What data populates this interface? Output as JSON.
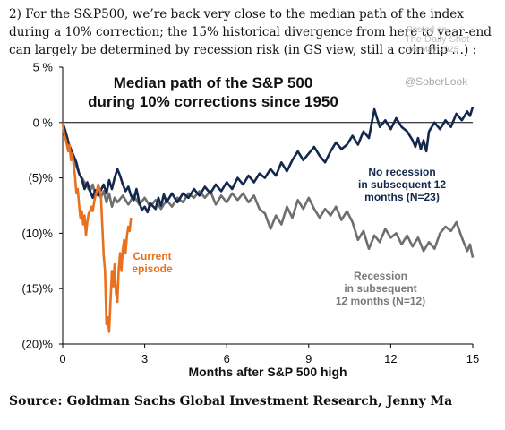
{
  "intro_text": "2) For the S&P500, we’re back very close to the median path of the index during a 10% correction; the 15% historical divergence from here to year-end can largely be determined by recession risk (in GS view, still a coin flip …) :",
  "watermark": {
    "line1": "Posted on",
    "line2": "The Daily Shot",
    "date": "06-May-2025"
  },
  "handle": "@SoberLook",
  "source": "Source: Goldman Sachs Global Investment Research, Jenny Ma",
  "chart_data": {
    "type": "line",
    "title": [
      "Median path of the S&P 500",
      "during 10% corrections since 1950"
    ],
    "xlabel": "Months after S&P 500 high",
    "ylabel": "",
    "xlim": [
      0,
      15
    ],
    "ylim": [
      -20,
      5
    ],
    "x_ticks": [
      0,
      3,
      6,
      9,
      12,
      15
    ],
    "x_tick_labels": [
      "0",
      "3",
      "6",
      "9",
      "12",
      "15"
    ],
    "y_ticks": [
      5,
      0,
      -5,
      -10,
      -15,
      -20
    ],
    "y_tick_labels": [
      "5 %",
      "0 %",
      "(5)%",
      "(10)%",
      "(15)%",
      "(20)%"
    ],
    "grid": false,
    "series": [
      {
        "name": "No recession in subsequent 12 months (N=23)",
        "color": "#13284c",
        "label_lines": [
          "No recession",
          "in subsequent 12",
          "months (N=23)"
        ],
        "points": [
          [
            0,
            0
          ],
          [
            0.1,
            -0.8
          ],
          [
            0.2,
            -1.8
          ],
          [
            0.3,
            -2.4
          ],
          [
            0.4,
            -3.0
          ],
          [
            0.5,
            -3.6
          ],
          [
            0.6,
            -4.6
          ],
          [
            0.7,
            -5.1
          ],
          [
            0.8,
            -6.0
          ],
          [
            0.9,
            -5.4
          ],
          [
            1.0,
            -6.2
          ],
          [
            1.1,
            -6.8
          ],
          [
            1.2,
            -6.1
          ],
          [
            1.3,
            -6.6
          ],
          [
            1.5,
            -5.6
          ],
          [
            1.6,
            -6.4
          ],
          [
            1.7,
            -5.2
          ],
          [
            1.8,
            -6.0
          ],
          [
            1.9,
            -5.0
          ],
          [
            2.0,
            -4.2
          ],
          [
            2.1,
            -4.8
          ],
          [
            2.2,
            -5.6
          ],
          [
            2.3,
            -6.2
          ],
          [
            2.4,
            -5.8
          ],
          [
            2.5,
            -6.6
          ],
          [
            2.6,
            -7.0
          ],
          [
            2.7,
            -6.0
          ],
          [
            2.8,
            -7.2
          ],
          [
            2.9,
            -7.9
          ],
          [
            3.0,
            -7.6
          ],
          [
            3.1,
            -8.1
          ],
          [
            3.2,
            -7.3
          ],
          [
            3.4,
            -7.8
          ],
          [
            3.5,
            -6.8
          ],
          [
            3.6,
            -7.5
          ],
          [
            3.7,
            -6.5
          ],
          [
            3.8,
            -7.2
          ],
          [
            4.0,
            -6.4
          ],
          [
            4.2,
            -7.2
          ],
          [
            4.4,
            -6.4
          ],
          [
            4.6,
            -6.8
          ],
          [
            4.8,
            -6.0
          ],
          [
            5.0,
            -6.6
          ],
          [
            5.2,
            -5.8
          ],
          [
            5.4,
            -6.4
          ],
          [
            5.6,
            -5.6
          ],
          [
            5.8,
            -6.2
          ],
          [
            6.0,
            -5.4
          ],
          [
            6.2,
            -6.0
          ],
          [
            6.4,
            -5.0
          ],
          [
            6.6,
            -5.6
          ],
          [
            6.8,
            -4.8
          ],
          [
            7.0,
            -5.4
          ],
          [
            7.2,
            -4.6
          ],
          [
            7.4,
            -5.0
          ],
          [
            7.6,
            -4.2
          ],
          [
            7.8,
            -4.8
          ],
          [
            8.0,
            -3.6
          ],
          [
            8.2,
            -4.4
          ],
          [
            8.4,
            -3.4
          ],
          [
            8.6,
            -2.6
          ],
          [
            8.8,
            -3.4
          ],
          [
            9.0,
            -2.8
          ],
          [
            9.2,
            -2.2
          ],
          [
            9.4,
            -3.0
          ],
          [
            9.6,
            -3.6
          ],
          [
            9.8,
            -2.6
          ],
          [
            10.0,
            -1.8
          ],
          [
            10.2,
            -2.4
          ],
          [
            10.4,
            -2.0
          ],
          [
            10.6,
            -1.2
          ],
          [
            10.8,
            -2.0
          ],
          [
            11.0,
            -0.8
          ],
          [
            11.2,
            -1.4
          ],
          [
            11.4,
            1.2
          ],
          [
            11.5,
            0.4
          ],
          [
            11.6,
            -0.4
          ],
          [
            11.8,
            0.2
          ],
          [
            12.0,
            -0.6
          ],
          [
            12.2,
            0.4
          ],
          [
            12.4,
            -0.4
          ],
          [
            12.6,
            -0.8
          ],
          [
            12.8,
            -1.6
          ],
          [
            12.9,
            -2.2
          ],
          [
            13.0,
            -1.4
          ],
          [
            13.1,
            -2.4
          ],
          [
            13.2,
            -1.6
          ],
          [
            13.3,
            -2.6
          ],
          [
            13.4,
            -0.8
          ],
          [
            13.6,
            0.0
          ],
          [
            13.8,
            -0.6
          ],
          [
            14.0,
            0.2
          ],
          [
            14.2,
            -0.4
          ],
          [
            14.4,
            0.8
          ],
          [
            14.6,
            0.2
          ],
          [
            14.8,
            1.0
          ],
          [
            14.9,
            0.6
          ],
          [
            15.0,
            1.4
          ]
        ]
      },
      {
        "name": "Recession in subsequent 12 months (N=12)",
        "color": "#6e6e6e",
        "label_lines": [
          "Recession",
          "in subsequent",
          "12 months (N=12)"
        ],
        "points": [
          [
            0,
            0
          ],
          [
            0.15,
            -1.2
          ],
          [
            0.3,
            -2.6
          ],
          [
            0.45,
            -3.6
          ],
          [
            0.6,
            -4.6
          ],
          [
            0.75,
            -5.2
          ],
          [
            0.9,
            -5.8
          ],
          [
            1.0,
            -6.2
          ],
          [
            1.1,
            -5.6
          ],
          [
            1.2,
            -6.6
          ],
          [
            1.3,
            -5.8
          ],
          [
            1.4,
            -6.8
          ],
          [
            1.5,
            -6.2
          ],
          [
            1.6,
            -7.2
          ],
          [
            1.7,
            -6.4
          ],
          [
            1.8,
            -7.6
          ],
          [
            1.9,
            -6.8
          ],
          [
            2.0,
            -7.2
          ],
          [
            2.2,
            -6.6
          ],
          [
            2.4,
            -7.4
          ],
          [
            2.6,
            -6.6
          ],
          [
            2.8,
            -7.4
          ],
          [
            3.0,
            -6.8
          ],
          [
            3.2,
            -7.6
          ],
          [
            3.4,
            -7.0
          ],
          [
            3.6,
            -7.8
          ],
          [
            3.8,
            -7.0
          ],
          [
            4.0,
            -7.6
          ],
          [
            4.2,
            -6.8
          ],
          [
            4.4,
            -7.2
          ],
          [
            4.6,
            -6.4
          ],
          [
            4.8,
            -6.8
          ],
          [
            5.0,
            -6.2
          ],
          [
            5.2,
            -6.8
          ],
          [
            5.4,
            -6.2
          ],
          [
            5.6,
            -7.4
          ],
          [
            5.8,
            -6.6
          ],
          [
            6.0,
            -7.2
          ],
          [
            6.2,
            -6.4
          ],
          [
            6.4,
            -7.0
          ],
          [
            6.6,
            -6.4
          ],
          [
            6.8,
            -7.2
          ],
          [
            7.0,
            -6.6
          ],
          [
            7.2,
            -7.8
          ],
          [
            7.4,
            -8.2
          ],
          [
            7.6,
            -9.6
          ],
          [
            7.8,
            -8.4
          ],
          [
            8.0,
            -9.2
          ],
          [
            8.2,
            -7.6
          ],
          [
            8.4,
            -8.6
          ],
          [
            8.6,
            -7.0
          ],
          [
            8.8,
            -7.8
          ],
          [
            9.0,
            -6.8
          ],
          [
            9.2,
            -7.8
          ],
          [
            9.4,
            -8.6
          ],
          [
            9.6,
            -7.8
          ],
          [
            9.8,
            -8.4
          ],
          [
            10.0,
            -7.6
          ],
          [
            10.2,
            -8.8
          ],
          [
            10.4,
            -8.0
          ],
          [
            10.6,
            -9.0
          ],
          [
            10.8,
            -10.6
          ],
          [
            11.0,
            -9.8
          ],
          [
            11.2,
            -11.4
          ],
          [
            11.4,
            -10.2
          ],
          [
            11.6,
            -10.8
          ],
          [
            11.8,
            -9.6
          ],
          [
            12.0,
            -10.4
          ],
          [
            12.2,
            -10.0
          ],
          [
            12.4,
            -11.0
          ],
          [
            12.6,
            -10.2
          ],
          [
            12.8,
            -11.2
          ],
          [
            13.0,
            -10.4
          ],
          [
            13.2,
            -11.6
          ],
          [
            13.4,
            -10.8
          ],
          [
            13.6,
            -11.4
          ],
          [
            13.8,
            -10.0
          ],
          [
            14.0,
            -9.4
          ],
          [
            14.2,
            -9.8
          ],
          [
            14.4,
            -9.0
          ],
          [
            14.6,
            -10.4
          ],
          [
            14.8,
            -11.6
          ],
          [
            14.9,
            -11.0
          ],
          [
            15.0,
            -12.2
          ]
        ]
      },
      {
        "name": "Current episode",
        "color": "#e8701e",
        "label_lines": [
          "Current",
          "episode"
        ],
        "points": [
          [
            0,
            0
          ],
          [
            0.05,
            -1.0
          ],
          [
            0.12,
            -1.6
          ],
          [
            0.2,
            -2.6
          ],
          [
            0.25,
            -2.0
          ],
          [
            0.3,
            -3.4
          ],
          [
            0.35,
            -2.8
          ],
          [
            0.45,
            -4.8
          ],
          [
            0.5,
            -6.4
          ],
          [
            0.55,
            -6.0
          ],
          [
            0.6,
            -7.4
          ],
          [
            0.65,
            -8.6
          ],
          [
            0.7,
            -8.0
          ],
          [
            0.75,
            -9.2
          ],
          [
            0.8,
            -8.4
          ],
          [
            0.85,
            -10.2
          ],
          [
            0.9,
            -9.0
          ],
          [
            0.95,
            -8.2
          ],
          [
            1.0,
            -8.0
          ],
          [
            1.05,
            -7.6
          ],
          [
            1.1,
            -8.0
          ],
          [
            1.15,
            -7.2
          ],
          [
            1.2,
            -6.6
          ],
          [
            1.25,
            -6.2
          ],
          [
            1.3,
            -5.6
          ],
          [
            1.35,
            -6.0
          ],
          [
            1.4,
            -6.6
          ],
          [
            1.45,
            -9.4
          ],
          [
            1.5,
            -12.0
          ],
          [
            1.55,
            -13.4
          ],
          [
            1.6,
            -18.2
          ],
          [
            1.65,
            -17.6
          ],
          [
            1.7,
            -18.9
          ],
          [
            1.75,
            -16.2
          ],
          [
            1.8,
            -13.4
          ],
          [
            1.85,
            -14.8
          ],
          [
            1.9,
            -12.8
          ],
          [
            1.95,
            -15.4
          ],
          [
            2.0,
            -16.2
          ],
          [
            2.05,
            -13.2
          ],
          [
            2.1,
            -11.8
          ],
          [
            2.15,
            -13.4
          ],
          [
            2.2,
            -11.4
          ],
          [
            2.25,
            -10.6
          ],
          [
            2.3,
            -11.8
          ],
          [
            2.35,
            -10.2
          ],
          [
            2.4,
            -9.4
          ],
          [
            2.45,
            -9.8
          ],
          [
            2.5,
            -8.6
          ]
        ]
      }
    ]
  }
}
